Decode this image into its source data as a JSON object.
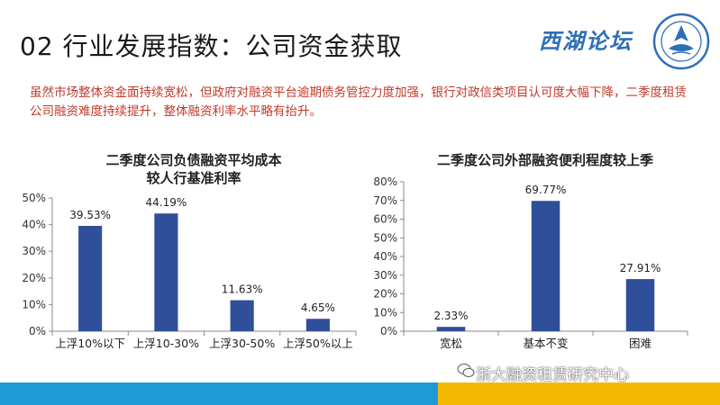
{
  "header": {
    "title": "02 行业发展指数：公司资金获取",
    "logo_text": "西湖论坛"
  },
  "summary": "虽然市场整体资金面持续宽松，但政府对融资平台逾期债务管控力度加强，银行对政信类项目认可度大幅下降，二季度租赁公司融资难度持续提升，整体融资利率水平略有抬升。",
  "watermark": "浙大融资租赁研究中心",
  "colors": {
    "bar": "#2f4f9a",
    "band_blue": "#1e9ad6",
    "band_yellow": "#f5b800",
    "summary_text": "#c0392b"
  },
  "chart_data": [
    {
      "type": "bar",
      "title_lines": [
        "二季度公司负债融资平均成本",
        "较人行基准利率"
      ],
      "categories": [
        "上浮10%以下",
        "上浮10-30%",
        "上浮30-50%",
        "上浮50%以上"
      ],
      "values": [
        39.53,
        44.19,
        11.63,
        4.65
      ],
      "data_labels": [
        "39.53%",
        "44.19%",
        "11.63%",
        "4.65%"
      ],
      "ylim": [
        0,
        50
      ],
      "yticks": [
        "0%",
        "10%",
        "20%",
        "30%",
        "40%",
        "50%"
      ],
      "ytick_values": [
        0,
        10,
        20,
        30,
        40,
        50
      ],
      "grid": false,
      "legend": false
    },
    {
      "type": "bar",
      "title_lines": [
        "二季度公司外部融资便利程度较上季"
      ],
      "categories": [
        "宽松",
        "基本不变",
        "困难"
      ],
      "values": [
        2.33,
        69.77,
        27.91
      ],
      "data_labels": [
        "2.33%",
        "69.77%",
        "27.91%"
      ],
      "ylim": [
        0,
        80
      ],
      "yticks": [
        "0%",
        "10%",
        "20%",
        "30%",
        "40%",
        "50%",
        "60%",
        "70%",
        "80%"
      ],
      "ytick_values": [
        0,
        10,
        20,
        30,
        40,
        50,
        60,
        70,
        80
      ],
      "grid": false,
      "legend": false
    }
  ]
}
